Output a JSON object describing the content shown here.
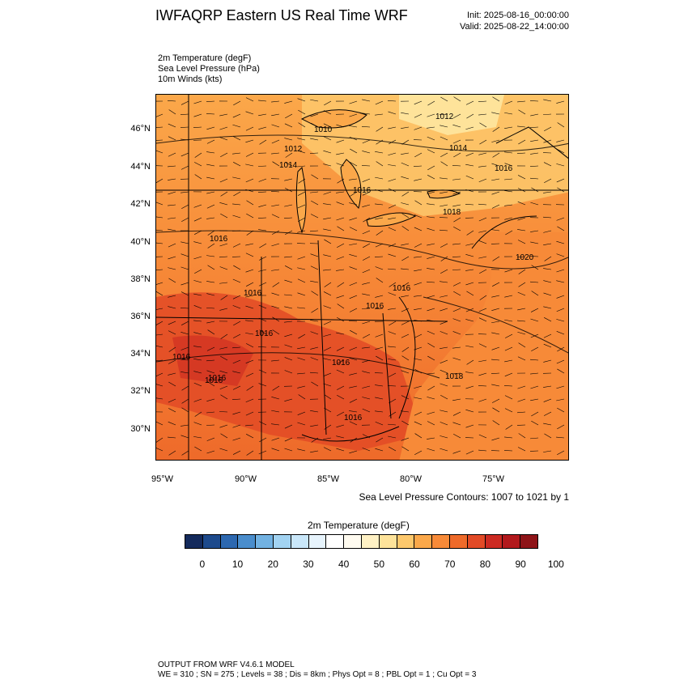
{
  "header": {
    "title": "IWFAQRP Eastern US Real Time WRF",
    "init": "Init: 2025-08-16_00:00:00",
    "valid": "Valid: 2025-08-22_14:00:00"
  },
  "fields": [
    "2m Temperature   (degF)",
    "Sea Level Pressure   (hPa)",
    "10m Winds   (kts)"
  ],
  "map": {
    "lat_labels": [
      "46°N",
      "44°N",
      "42°N",
      "40°N",
      "38°N",
      "36°N",
      "34°N",
      "32°N",
      "30°N"
    ],
    "lon_labels": [
      "95°W",
      "90°W",
      "85°W",
      "80°W",
      "75°W"
    ],
    "isobar_labels": [
      "1010",
      "1012",
      "1014",
      "1012",
      "1014",
      "1016",
      "1016",
      "1018",
      "1016",
      "1020",
      "1016",
      "1016",
      "1016",
      "1016",
      "1016",
      "1016",
      "1018",
      "1016",
      "1016",
      "1016"
    ],
    "contour_note": "Sea Level Pressure Contours: 1007 to 1021 by 1"
  },
  "colorbar": {
    "title": "2m Temperature   (degF)",
    "ticks": [
      "0",
      "10",
      "20",
      "30",
      "40",
      "50",
      "60",
      "70",
      "80",
      "90",
      "100"
    ],
    "colors": [
      "#142a5c",
      "#1d4a8c",
      "#2d68b0",
      "#4a8dcc",
      "#72b2e2",
      "#a2d3f2",
      "#c9e7fa",
      "#e7f4fd",
      "#ffffff",
      "#fffbf0",
      "#fff1c4",
      "#fee39a",
      "#fdc86c",
      "#fba84a",
      "#f78a38",
      "#ee6a2a",
      "#e24a26",
      "#cc2a22",
      "#b2191c",
      "#8e1418"
    ]
  },
  "footer": {
    "line1": "OUTPUT FROM WRF V4.6.1 MODEL",
    "line2": "WE = 310 ; SN = 275 ; Levels = 38 ; Dis = 8km ; Phys Opt = 8 ; PBL Opt = 1 ; Cu Opt = 3"
  }
}
